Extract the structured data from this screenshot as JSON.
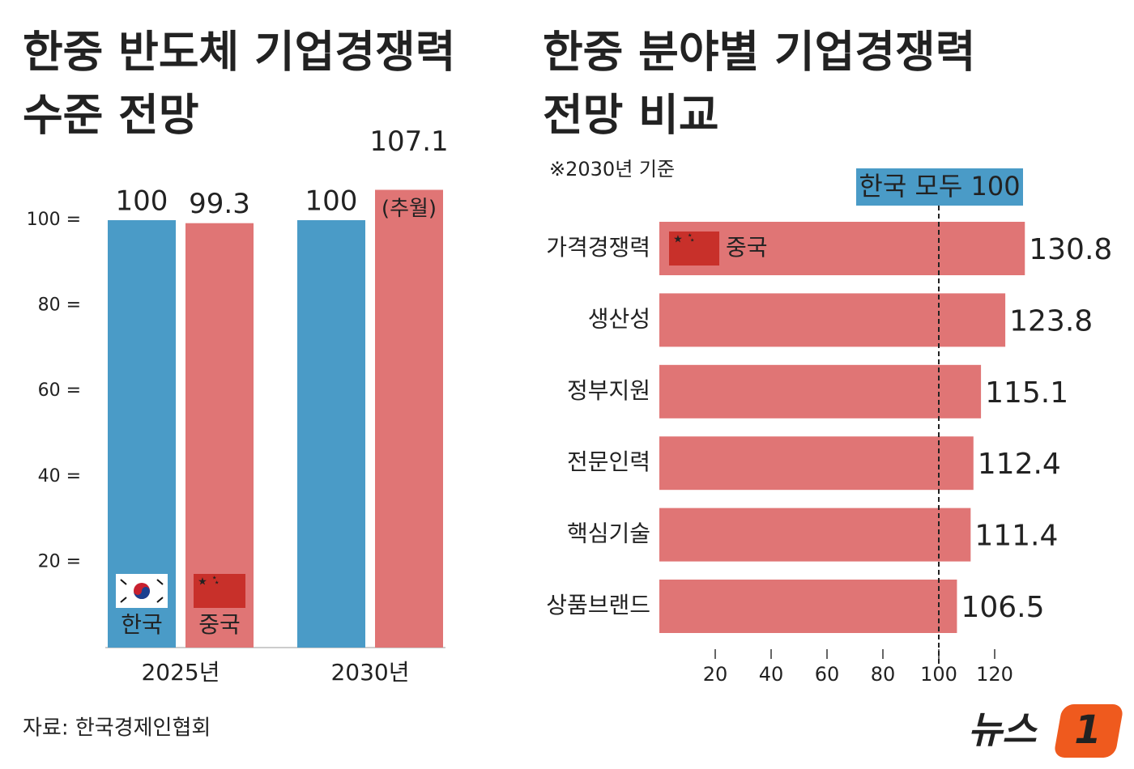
{
  "chart_data": [
    {
      "type": "bar",
      "title": [
        "한중 반도체 기업경쟁력",
        "수준 전망"
      ],
      "categories": [
        "2025년",
        "2030년"
      ],
      "series": [
        {
          "name": "한국",
          "color": "#4a9bc7",
          "values": [
            100,
            100
          ]
        },
        {
          "name": "중국",
          "color": "#e07575",
          "values": [
            99.3,
            107.1
          ]
        }
      ],
      "annotation": "(추월)",
      "ylim": [
        0,
        110
      ],
      "yticks": [
        {
          "value": 20,
          "label": "20 ="
        },
        {
          "value": 40,
          "label": "40 ="
        },
        {
          "value": 60,
          "label": "60 ="
        },
        {
          "value": 80,
          "label": "80 ="
        },
        {
          "value": 100,
          "label": "100 ="
        }
      ]
    },
    {
      "type": "barh",
      "title": [
        "한중 분야별 기업경쟁력",
        "전망 비교"
      ],
      "subtitle": "※2030년 기준",
      "categories": [
        "가격경쟁력",
        "생산성",
        "정부지원",
        "전문인력",
        "핵심기술",
        "상품브랜드"
      ],
      "series": [
        {
          "name": "중국",
          "color": "#e07575",
          "values": [
            130.8,
            123.8,
            115.1,
            112.4,
            111.4,
            106.5
          ]
        }
      ],
      "reference_line": {
        "value": 100,
        "label": "한국 모두 100",
        "color": "#4a9bc7"
      },
      "xlim": [
        0,
        140
      ],
      "xticks": [
        20,
        40,
        60,
        80,
        100,
        120
      ]
    }
  ],
  "source": "자료: 한국경제인협회",
  "logo": {
    "text": "뉴스",
    "number": "1"
  }
}
